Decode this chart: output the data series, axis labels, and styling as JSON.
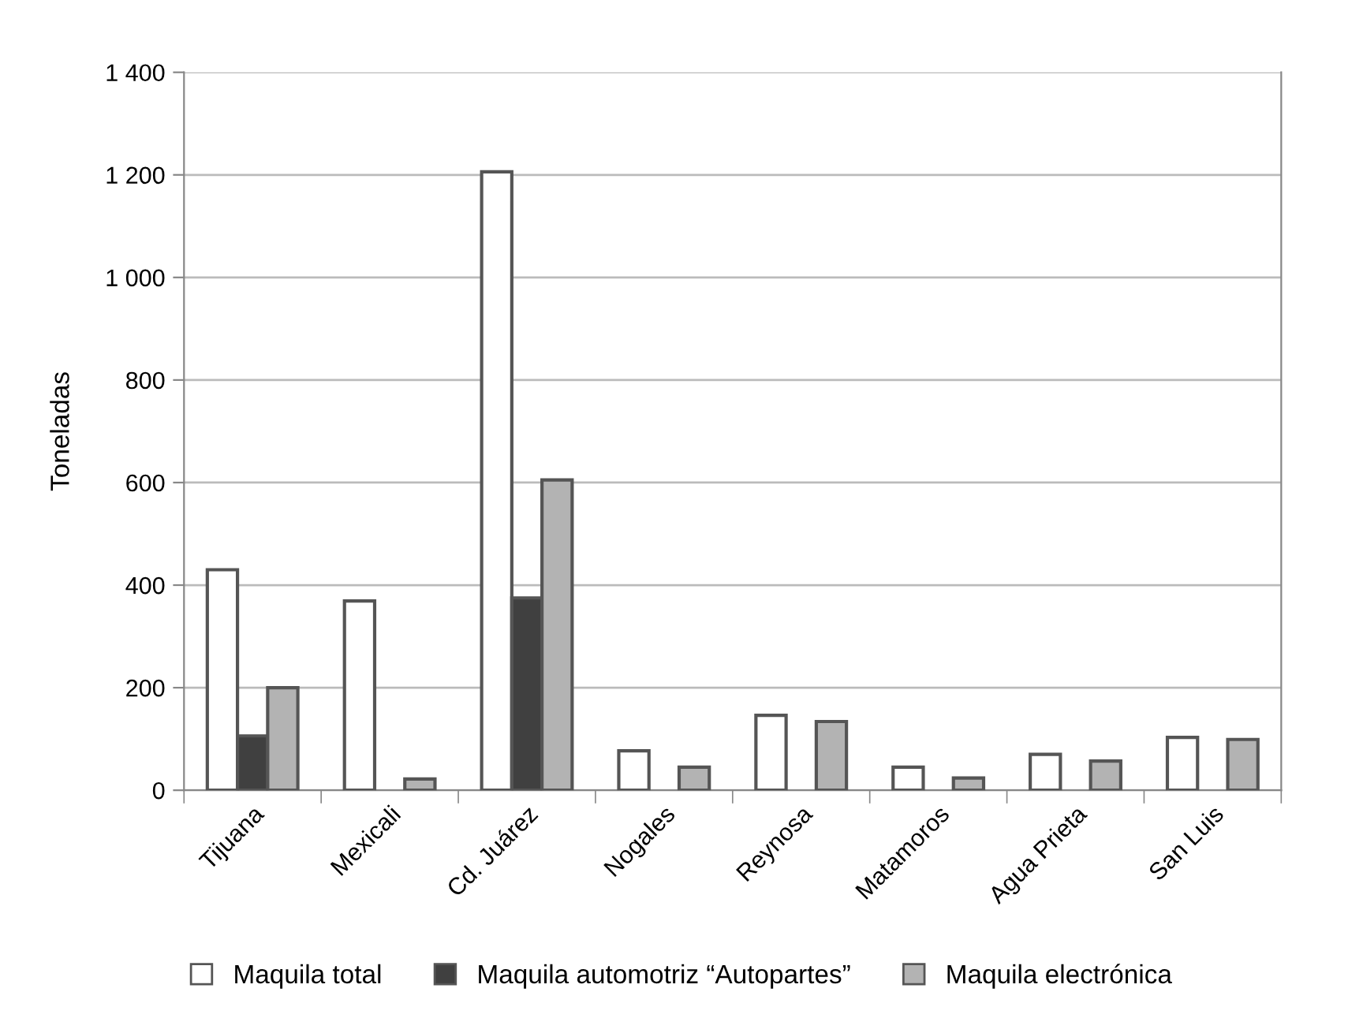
{
  "chart_data": {
    "type": "bar",
    "ylabel": "Toneladas",
    "categories": [
      "Tijuana",
      "Mexicali",
      "Cd. Juárez",
      "Nogales",
      "Reynosa",
      "Matamoros",
      "Agua Prieta",
      "San Luis"
    ],
    "series": [
      {
        "name": "Maquila total",
        "color": "#ffffff",
        "values": [
          430,
          369,
          1206,
          77,
          146,
          45,
          70,
          103
        ]
      },
      {
        "name": "Maquila automotriz “Autopartes”",
        "color": "#404040",
        "values": [
          106,
          null,
          375,
          null,
          null,
          null,
          null,
          null
        ]
      },
      {
        "name": "Maquila electrónica",
        "color": "#b3b3b3",
        "values": [
          200,
          22,
          605,
          45,
          134,
          24,
          57,
          99
        ]
      }
    ],
    "ylim": [
      0,
      1400
    ],
    "yticks": [
      0,
      200,
      400,
      600,
      800,
      {
        "value": 1000,
        "label": "1 000"
      },
      {
        "value": 1200,
        "label": "1 200"
      },
      {
        "value": 1400,
        "label": "1 400"
      }
    ],
    "grid": "y",
    "legend": "bottom"
  }
}
